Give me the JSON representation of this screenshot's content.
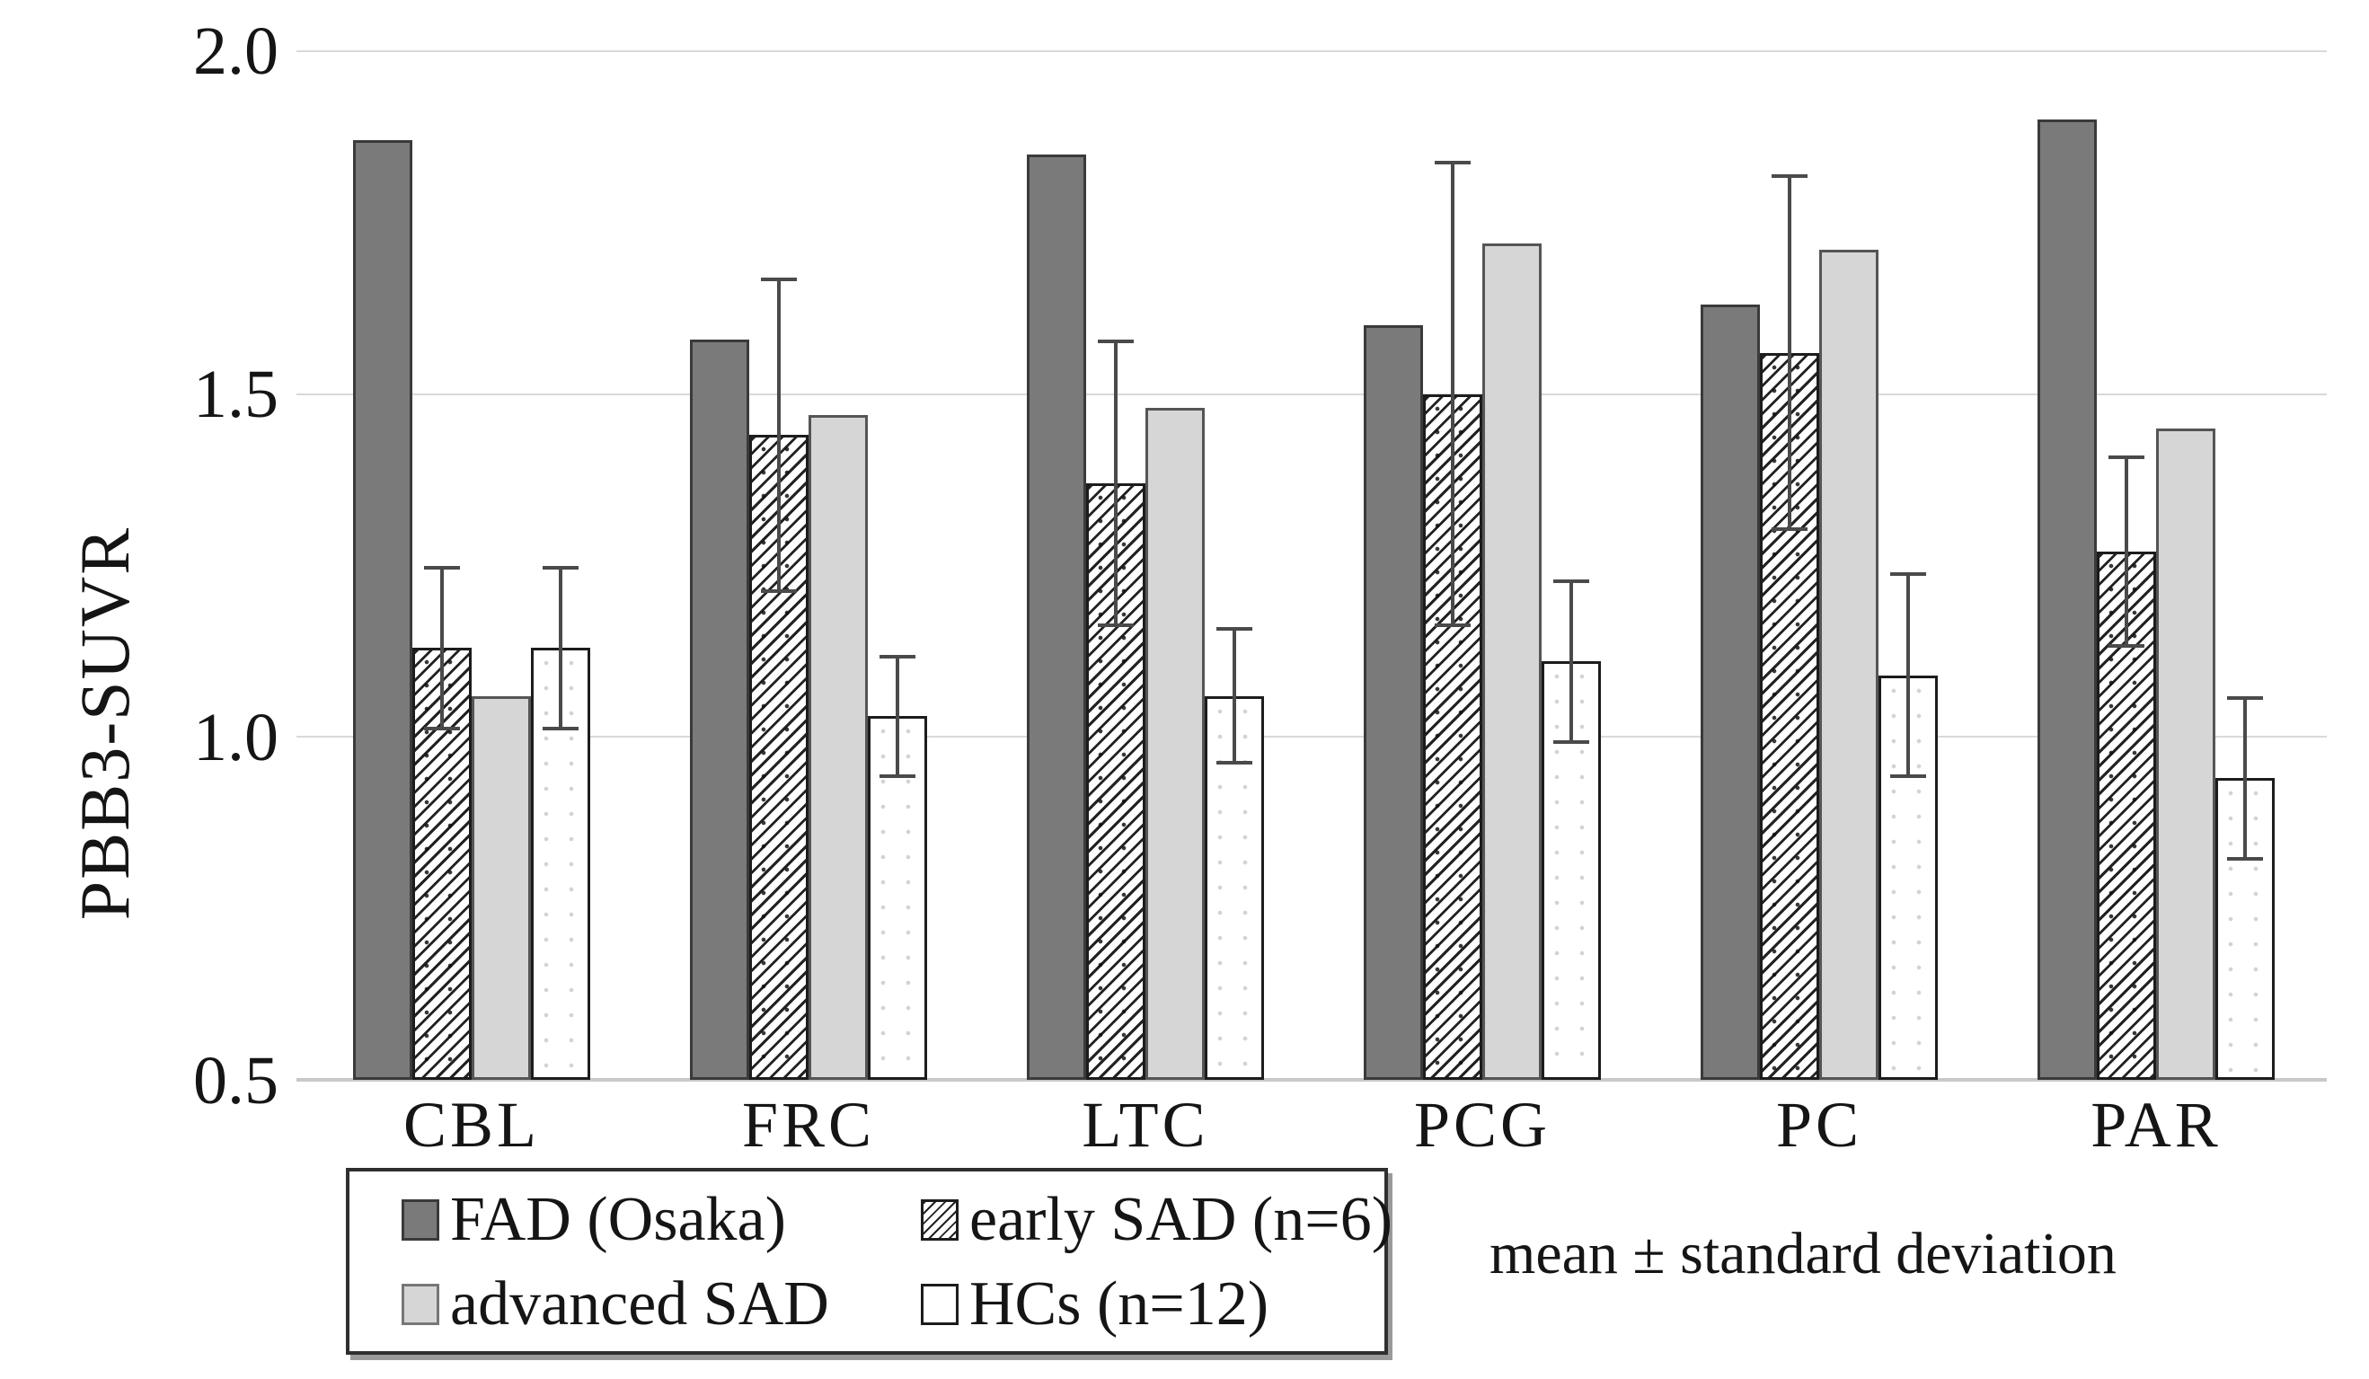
{
  "chart_data": {
    "type": "bar",
    "title": "",
    "ylabel": "PBB3-SUVR",
    "xlabel": "",
    "ylim": [
      0.5,
      2.0
    ],
    "yticks": [
      2.0,
      1.5,
      1.0,
      0.5
    ],
    "ytick_labels": [
      "2.0",
      "1.5",
      "1.0",
      "0.5"
    ],
    "grid": true,
    "legend_position": "bottom-left boxed, two columns",
    "note": "mean ± standard deviation",
    "categories": [
      "CBL",
      "FRC",
      "LTC",
      "PCG",
      "PC",
      "PAR"
    ],
    "series": [
      {
        "name": "FAD (Osaka)",
        "pattern": "solid-dark-gray",
        "fill": "#7a7a7a",
        "values": [
          1.87,
          1.58,
          1.85,
          1.6,
          1.63,
          1.9
        ],
        "errors": [
          null,
          null,
          null,
          null,
          null,
          null
        ]
      },
      {
        "name": "early SAD (n=6)",
        "pattern": "diagonal-hatch-on-white",
        "fill": "#ffffff",
        "values": [
          1.13,
          1.44,
          1.37,
          1.5,
          1.56,
          1.27
        ],
        "errors": [
          0.12,
          0.23,
          0.21,
          0.34,
          0.26,
          0.14
        ]
      },
      {
        "name": "advanced SAD",
        "pattern": "solid-light-gray",
        "fill": "#d6d6d6",
        "values": [
          1.06,
          1.47,
          1.48,
          1.72,
          1.71,
          1.45
        ],
        "errors": [
          null,
          null,
          null,
          null,
          null,
          null
        ]
      },
      {
        "name": "HCs (n=12)",
        "pattern": "white-faint-dots",
        "fill": "#ffffff",
        "values": [
          1.13,
          1.03,
          1.06,
          1.11,
          1.09,
          0.94
        ],
        "errors": [
          0.12,
          0.09,
          0.1,
          0.12,
          0.15,
          0.12
        ]
      }
    ],
    "colors": {
      "grid": "#d9d9d9",
      "axis": "#c8c8c8",
      "error_bar": "#4a4a4a",
      "text": "#151515"
    }
  }
}
